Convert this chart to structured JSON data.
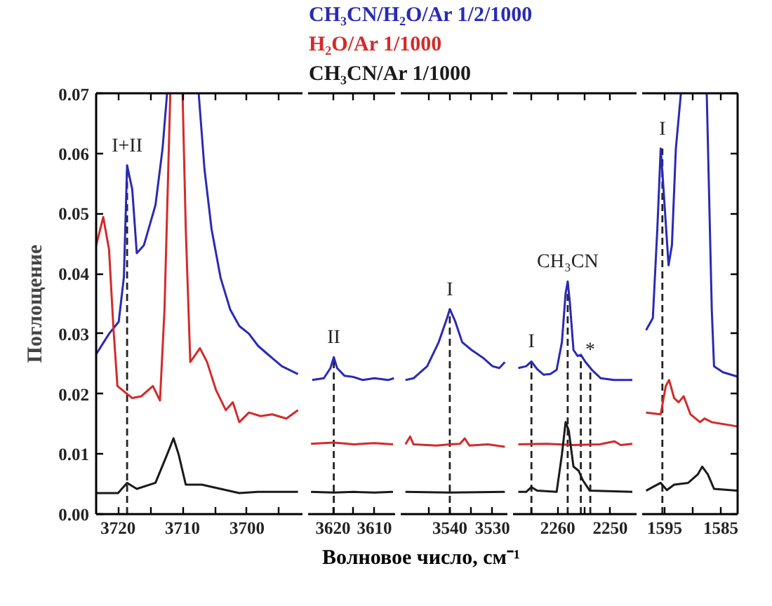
{
  "chart_data": [
    {
      "type": "line",
      "ylabel": "Поглощение",
      "xlabel": "Волновое число, см⁻¹",
      "legend": "top",
      "xlim": [
        3723.4,
        3691.4
      ],
      "xticks": [
        3720,
        {
          "value": 3715,
          "label": null
        },
        3710,
        {
          "value": 3705,
          "label": null
        },
        3700,
        {
          "value": 3695,
          "label": null
        }
      ],
      "ylim": [
        0,
        0.07
      ],
      "yticks": [
        {
          "value": 0,
          "label": "0.00"
        },
        {
          "value": 0.01,
          "label": "0.01"
        },
        {
          "value": 0.02,
          "label": "0.02"
        },
        {
          "value": 0.03,
          "label": "0.03"
        },
        {
          "value": 0.04,
          "label": "0.04"
        },
        {
          "value": 0.05,
          "label": "0.05"
        },
        {
          "value": 0.06,
          "label": "0.06"
        },
        {
          "value": 0.07,
          "label": "0.07"
        }
      ],
      "series": [
        {
          "name": "CH₃CN/H₂O/Ar 1/2/1000",
          "color": "#2a2ab4",
          "x": [
            3723.4,
            3721.4,
            3719.9,
            3719.1,
            3718.6,
            3717.8,
            3717.1,
            3716.0,
            3714.2,
            3713.1,
            3712.4,
            3710.0,
            3707.5,
            3706.6,
            3705.5,
            3704.1,
            3702.6,
            3701.2,
            3699.7,
            3698.3,
            3696.8,
            3694.6,
            3692.1
          ],
          "values": [
            0.0266,
            0.03,
            0.032,
            0.0394,
            0.058,
            0.054,
            0.0434,
            0.0447,
            0.0514,
            0.0608,
            0.07,
            null,
            0.07,
            0.0574,
            0.0474,
            0.0393,
            0.034,
            0.0313,
            0.03,
            0.028,
            0.0266,
            0.0246,
            0.0233
          ]
        },
        {
          "name": "H₂O/Ar 1/1000",
          "color": "#d42a2a",
          "x": [
            3723.4,
            3722.3,
            3721.4,
            3720.7,
            3720.1,
            3719.3,
            3717.8,
            3716.4,
            3714.6,
            3713.5,
            3712.8,
            3711.9,
            3711.0,
            3710.0,
            3709.5,
            3708.8,
            3707.3,
            3706.2,
            3704.8,
            3703.3,
            3702.2,
            3701.2,
            3699.7,
            3697.9,
            3696.1,
            3693.9,
            3692.1
          ],
          "values": [
            0.0447,
            0.0494,
            0.044,
            0.0306,
            0.0213,
            0.0206,
            0.0193,
            0.0196,
            0.0213,
            0.0189,
            0.034,
            0.07,
            null,
            0.07,
            0.0474,
            0.0253,
            0.0276,
            0.0253,
            0.0206,
            0.0173,
            0.0186,
            0.0153,
            0.0169,
            0.0163,
            0.0166,
            0.0159,
            0.0173
          ]
        },
        {
          "name": "CH₃CN/Ar 1/1000",
          "color": "#1a1a1a",
          "x": [
            3723.4,
            3720.0,
            3718.6,
            3717.1,
            3714.2,
            3712.4,
            3711.4,
            3710.6,
            3709.5,
            3707.0,
            3704.1,
            3701.2,
            3698.3,
            3692.1
          ],
          "values": [
            0.0035,
            0.0035,
            0.0052,
            0.0042,
            0.0052,
            0.0099,
            0.0126,
            0.0099,
            0.0049,
            0.0049,
            0.0042,
            0.0035,
            0.0037,
            0.0037
          ]
        }
      ],
      "ref_lines": [
        {
          "axis": "x",
          "value": 3718.6,
          "line_style": "dashed",
          "label": "I+II"
        }
      ]
    },
    {
      "type": "line",
      "tick_labels": "x",
      "xlim": [
        3626,
        3605
      ],
      "xticks": [
        3620,
        {
          "value": 3615,
          "label": null
        },
        3610
      ],
      "ylim": [
        0,
        0.07
      ],
      "yticks": [
        {
          "value": 0,
          "label": null
        },
        {
          "value": 0.07,
          "label": null
        }
      ],
      "series": [
        {
          "color": "#2a2ab4",
          "x": [
            3625,
            3622.2,
            3620.6,
            3619.8,
            3619,
            3617.2,
            3615,
            3612.8,
            3610,
            3606.7,
            3605.3
          ],
          "values": [
            0.0223,
            0.0226,
            0.0243,
            0.0261,
            0.0243,
            0.023,
            0.0228,
            0.0223,
            0.0226,
            0.0223,
            0.0226
          ]
        },
        {
          "color": "#d42a2a",
          "x": [
            3625.3,
            3619.8,
            3615,
            3610,
            3605.5
          ],
          "values": [
            0.0117,
            0.0119,
            0.0116,
            0.0118,
            0.0116
          ]
        },
        {
          "color": "#1a1a1a",
          "x": [
            3625.3,
            3619.8,
            3615,
            3610,
            3605.5
          ],
          "values": [
            0.0037,
            0.0036,
            0.0037,
            0.0036,
            0.0037
          ]
        }
      ],
      "ref_lines": [
        {
          "axis": "x",
          "value": 3619.8,
          "line_style": "dashed",
          "label": "II"
        }
      ]
    },
    {
      "type": "line",
      "tick_labels": "x",
      "xlim": [
        3551.5,
        3526.5
      ],
      "xticks": [
        {
          "value": 3545,
          "label": null
        },
        3540,
        {
          "value": 3535,
          "label": null
        },
        3530
      ],
      "ylim": [
        0,
        0.07
      ],
      "yticks": [
        {
          "value": 0,
          "label": null
        },
        {
          "value": 0.07,
          "label": null
        }
      ],
      "series": [
        {
          "color": "#2a2ab4",
          "x": [
            3550.4,
            3548.5,
            3545.3,
            3542.6,
            3540.6,
            3540,
            3538.7,
            3537.1,
            3534.9,
            3532.2,
            3530,
            3528.4,
            3527.1
          ],
          "values": [
            0.0223,
            0.0226,
            0.0246,
            0.0286,
            0.0327,
            0.0341,
            0.032,
            0.0286,
            0.0273,
            0.026,
            0.0246,
            0.0243,
            0.0253
          ]
        },
        {
          "color": "#d42a2a",
          "x": [
            3550.4,
            3549.3,
            3548.5,
            3543.1,
            3540,
            3537.6,
            3536.5,
            3535.4,
            3531.1,
            3527.1
          ],
          "values": [
            0.0116,
            0.0129,
            0.0116,
            0.0114,
            0.0116,
            0.0117,
            0.0126,
            0.0114,
            0.0116,
            0.0112
          ]
        },
        {
          "color": "#1a1a1a",
          "x": [
            3550.4,
            3540,
            3527.1
          ],
          "values": [
            0.0037,
            0.0036,
            0.0037
          ]
        }
      ],
      "ref_lines": [
        {
          "axis": "x",
          "value": 3540,
          "line_style": "dashed",
          "label": "I"
        }
      ]
    },
    {
      "type": "line",
      "tick_labels": "x",
      "xlim": [
        2268.5,
        2245
      ],
      "xticks": [
        {
          "value": 2265,
          "label": null
        },
        2260,
        {
          "value": 2255,
          "label": null
        },
        2250
      ],
      "ylim": [
        0,
        0.07
      ],
      "yticks": [
        {
          "value": 0,
          "label": null
        },
        {
          "value": 0.07,
          "label": null
        }
      ],
      "series": [
        {
          "color": "#2a2ab4",
          "x": [
            2267.5,
            2266,
            2265,
            2263.9,
            2262.7,
            2261.4,
            2260.2,
            2259.2,
            2258.5,
            2258.1,
            2257.7,
            2257,
            2256.2,
            2255.6,
            2254.8,
            2253.5,
            2251.8,
            2249.3,
            2245.8
          ],
          "values": [
            0.0243,
            0.0246,
            0.0254,
            0.0241,
            0.0232,
            0.0233,
            0.024,
            0.0286,
            0.0367,
            0.0387,
            0.0353,
            0.0273,
            0.0263,
            0.0265,
            0.0254,
            0.024,
            0.0226,
            0.0223,
            0.0223
          ]
        },
        {
          "color": "#d42a2a",
          "x": [
            2267.5,
            2262,
            2257,
            2252,
            2249.2,
            2248,
            2245.8
          ],
          "values": [
            0.0116,
            0.0117,
            0.0115,
            0.0116,
            0.0121,
            0.0115,
            0.0117
          ]
        },
        {
          "color": "#1a1a1a",
          "x": [
            2267.5,
            2266,
            2265,
            2263.9,
            2260.2,
            2259.2,
            2258.5,
            2257.9,
            2257,
            2256,
            2255.2,
            2253.9,
            2245.8
          ],
          "values": [
            0.0037,
            0.0037,
            0.0045,
            0.0039,
            0.0037,
            0.0099,
            0.0153,
            0.0139,
            0.0079,
            0.0072,
            0.0056,
            0.0039,
            0.0037
          ]
        }
      ],
      "ref_lines": [
        {
          "axis": "x",
          "value": 2265,
          "line_style": "dashed",
          "label": "I"
        },
        {
          "axis": "x",
          "value": 2258.1,
          "line_style": "dashed",
          "label": "CH₃CN"
        },
        {
          "axis": "x",
          "value": 2255.6,
          "line_style": "dashed"
        },
        {
          "axis": "x",
          "value": 2253.8,
          "line_style": "dashed",
          "label": "*"
        }
      ]
    },
    {
      "type": "line",
      "tick_labels": "x",
      "xlim": [
        1599,
        1582
      ],
      "xticks": [
        1595,
        {
          "value": 1590,
          "label": null
        },
        1585
      ],
      "ylim": [
        0,
        0.07
      ],
      "yticks": [
        {
          "value": 0,
          "label": null
        },
        {
          "value": 0.01,
          "label": null
        },
        {
          "value": 0.02,
          "label": null
        },
        {
          "value": 0.03,
          "label": null
        },
        {
          "value": 0.04,
          "label": null
        },
        {
          "value": 0.05,
          "label": null
        },
        {
          "value": 0.06,
          "label": null
        },
        {
          "value": 0.07,
          "label": null
        }
      ],
      "series": [
        {
          "color": "#2a2ab4",
          "x": [
            1598.3,
            1597.1,
            1596.3,
            1595.7,
            1595.2,
            1594.3,
            1593.7,
            1593.0,
            1592.1,
            1590,
            1587.5,
            1586.6,
            1586.2,
            1584.6,
            1582.1
          ],
          "values": [
            0.0306,
            0.0326,
            0.0474,
            0.0608,
            0.0541,
            0.0414,
            0.0447,
            0.0608,
            0.07,
            null,
            0.07,
            0.034,
            0.0246,
            0.0236,
            0.0229
          ]
        },
        {
          "color": "#d42a2a",
          "x": [
            1598.3,
            1595.7,
            1594.8,
            1594.2,
            1593.3,
            1592.5,
            1591.6,
            1590.4,
            1588.7,
            1587.9,
            1586.6,
            1582.1
          ],
          "values": [
            0.0169,
            0.0166,
            0.0213,
            0.0223,
            0.0193,
            0.0186,
            0.0196,
            0.0166,
            0.0153,
            0.0159,
            0.0153,
            0.0146
          ]
        },
        {
          "color": "#1a1a1a",
          "x": [
            1598.3,
            1597.1,
            1595.7,
            1594.6,
            1593.3,
            1590.8,
            1589.1,
            1588.3,
            1587.3,
            1586.2,
            1582.1
          ],
          "values": [
            0.0039,
            0.0045,
            0.0052,
            0.004,
            0.0049,
            0.0052,
            0.0066,
            0.0079,
            0.0066,
            0.0042,
            0.0039
          ]
        }
      ],
      "ref_lines": [
        {
          "axis": "x",
          "value": 1595.4,
          "line_style": "dashed",
          "label": "I"
        }
      ]
    }
  ]
}
